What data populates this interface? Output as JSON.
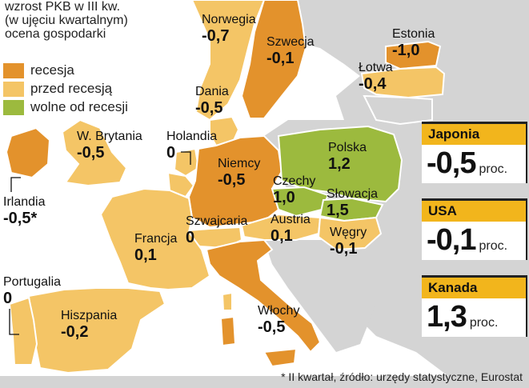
{
  "header": {
    "line1": "wzrost PKB w III kw.",
    "line2": "(w ujęciu kwartalnym)",
    "line3": "ocena gospodarki"
  },
  "legend": [
    {
      "label": "recesja",
      "color": "#e3922c"
    },
    {
      "label": "przed recesją",
      "color": "#f4c566"
    },
    {
      "label": "wolne od recesji",
      "color": "#9cba3e"
    }
  ],
  "colors": {
    "background": "#ffffff",
    "other_land": "#d4d4d4",
    "sea": "#ffffff",
    "border": "#ffffff",
    "box_header": "#f2b51c"
  },
  "countries": [
    {
      "name": "Norwegia",
      "value": "-0,7",
      "status": "przed recesją"
    },
    {
      "name": "Szwecja",
      "value": "-0,1",
      "status": "recesja"
    },
    {
      "name": "Estonia",
      "value": "-1,0",
      "status": "recesja"
    },
    {
      "name": "Łotwa",
      "value": "-0,4",
      "status": "przed recesją"
    },
    {
      "name": "Dania",
      "value": "-0,5",
      "status": "przed recesją"
    },
    {
      "name": "W. Brytania",
      "value": "-0,5",
      "status": "przed recesją"
    },
    {
      "name": "Holandia",
      "value": "0",
      "status": "przed recesją"
    },
    {
      "name": "Irlandia",
      "value": "-0,5*",
      "status": "recesja"
    },
    {
      "name": "Niemcy",
      "value": "-0,5",
      "status": "recesja"
    },
    {
      "name": "Polska",
      "value": "1,2",
      "status": "wolne od recesji"
    },
    {
      "name": "Czechy",
      "value": "1,0",
      "status": "wolne od recesji"
    },
    {
      "name": "Słowacja",
      "value": "1,5",
      "status": "wolne od recesji"
    },
    {
      "name": "Szwajcaria",
      "value": "0",
      "status": "przed recesją"
    },
    {
      "name": "Austria",
      "value": "0,1",
      "status": "przed recesją"
    },
    {
      "name": "Węgry",
      "value": "-0,1",
      "status": "przed recesją"
    },
    {
      "name": "Francja",
      "value": "0,1",
      "status": "przed recesją"
    },
    {
      "name": "Portugalia",
      "value": "0",
      "status": "przed recesją"
    },
    {
      "name": "Hiszpania",
      "value": "-0,2",
      "status": "przed recesją"
    },
    {
      "name": "Włochy",
      "value": "-0,5",
      "status": "recesja"
    }
  ],
  "boxes": [
    {
      "name": "Japonia",
      "value": "-0,5",
      "unit": "proc."
    },
    {
      "name": "USA",
      "value": "-0,1",
      "unit": "proc."
    },
    {
      "name": "Kanada",
      "value": "1,3",
      "unit": "proc."
    }
  ],
  "footnote": "* II kwartał, źródło: urzędy statystyczne, Eurostat"
}
